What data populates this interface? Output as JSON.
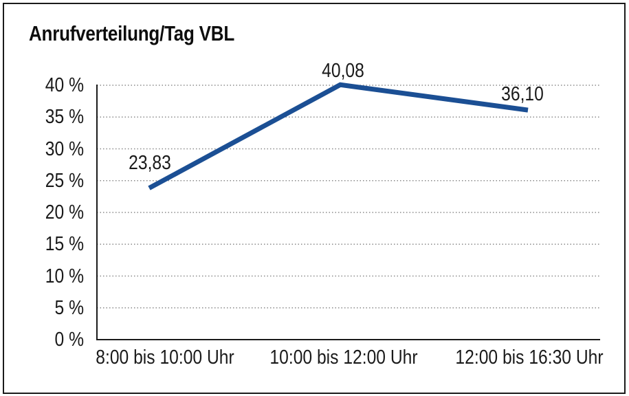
{
  "chart_data": {
    "type": "line",
    "title": "Anrufverteilung/Tag VBL",
    "categories": [
      "8:00 bis 10:00 Uhr",
      "10:00 bis 12:00 Uhr",
      "12:00 bis 16:30 Uhr"
    ],
    "values": [
      23.83,
      40.08,
      36.1
    ],
    "value_labels": [
      "23,83",
      "40,08",
      "36,10"
    ],
    "y_ticks": [
      0,
      5,
      10,
      15,
      20,
      25,
      30,
      35,
      40
    ],
    "y_tick_labels": [
      "0 %",
      "5 %",
      "10 %",
      "15 %",
      "20 %",
      "25 %",
      "30 %",
      "35 %",
      "40 %"
    ],
    "ylim": [
      0,
      40
    ],
    "xlabel": "",
    "ylabel": "",
    "grid": "horizontal-dotted",
    "legend": "none"
  },
  "colors": {
    "line": "#1B4F94",
    "axis": "#1a1a1a",
    "grid": "#8a8a8a",
    "text": "#1a1a1a",
    "background": "#ffffff",
    "border": "#1a1a1a"
  }
}
